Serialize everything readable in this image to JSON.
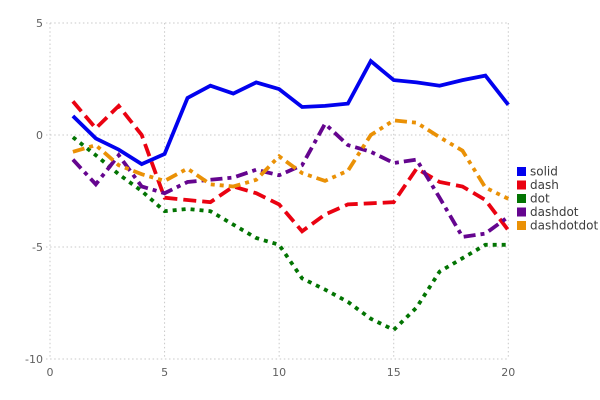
{
  "chart_data": {
    "type": "line",
    "title": "",
    "xlabel": "",
    "ylabel": "",
    "x": [
      1,
      2,
      3,
      4,
      5,
      6,
      7,
      8,
      9,
      10,
      11,
      12,
      13,
      14,
      15,
      16,
      17,
      18,
      19,
      20
    ],
    "series": [
      {
        "name": "solid",
        "style": "solid",
        "color": "#0202ee",
        "values": [
          0.85,
          -0.15,
          -0.65,
          -1.3,
          -0.85,
          1.65,
          2.2,
          1.85,
          2.35,
          2.05,
          1.25,
          1.3,
          1.4,
          3.3,
          2.45,
          2.35,
          2.2,
          2.45,
          2.65,
          1.35
        ]
      },
      {
        "name": "dash",
        "style": "dash",
        "color": "#ea0211",
        "values": [
          1.5,
          0.3,
          1.3,
          0.0,
          -2.8,
          -2.9,
          -3.0,
          -2.3,
          -2.6,
          -3.1,
          -4.3,
          -3.55,
          -3.1,
          -3.05,
          -3.0,
          -1.5,
          -2.1,
          -2.3,
          -2.9,
          -4.25
        ]
      },
      {
        "name": "dot",
        "style": "dot",
        "color": "#027402",
        "values": [
          -0.1,
          -0.9,
          -1.75,
          -2.5,
          -3.4,
          -3.3,
          -3.4,
          -4.0,
          -4.6,
          -4.9,
          -6.4,
          -6.9,
          -7.45,
          -8.2,
          -8.7,
          -7.7,
          -6.1,
          -5.5,
          -4.9,
          -4.9
        ]
      },
      {
        "name": "dashdot",
        "style": "dashdot",
        "color": "#65058f",
        "values": [
          -1.1,
          -2.2,
          -0.9,
          -2.3,
          -2.6,
          -2.1,
          -2.0,
          -1.9,
          -1.55,
          -1.8,
          -1.35,
          0.5,
          -0.45,
          -0.75,
          -1.25,
          -1.1,
          -2.8,
          -4.55,
          -4.4,
          -3.65
        ]
      },
      {
        "name": "dashdotdot",
        "style": "dashdotdot",
        "color": "#ea9106",
        "values": [
          -0.75,
          -0.45,
          -1.35,
          -1.75,
          -2.05,
          -1.5,
          -2.2,
          -2.3,
          -2.0,
          -0.95,
          -1.7,
          -2.05,
          -1.6,
          0.0,
          0.65,
          0.55,
          -0.1,
          -0.7,
          -2.35,
          -2.85
        ]
      }
    ],
    "xticks": [
      0,
      5,
      10,
      15,
      20
    ],
    "yticks": [
      -10,
      -5,
      0,
      5
    ],
    "xlim": [
      0,
      20
    ],
    "ylim": [
      -10,
      5
    ],
    "grid": true,
    "legend_position": "right",
    "legend_labels": [
      "solid",
      "dash",
      "dot",
      "dashdot",
      "dashdotdot"
    ]
  },
  "style": {
    "background": "#ffffff",
    "grid_color": "#c9c9c9",
    "tick_label_color": "#606060",
    "legend_text_color": "#3c3c3c"
  }
}
